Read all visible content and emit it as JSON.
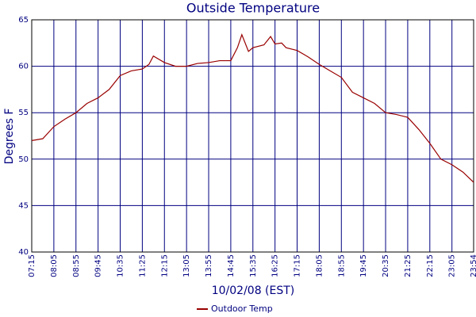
{
  "chart_data": {
    "type": "line",
    "title": "Outside Temperature",
    "y_label": "Degrees F",
    "x_label": "10/02/08 (EST)",
    "x": [
      435,
      460,
      485,
      510,
      535,
      560,
      585,
      610,
      635,
      660,
      685,
      700,
      710,
      735,
      760,
      785,
      810,
      835,
      860,
      885,
      900,
      910,
      925,
      935,
      960,
      975,
      985,
      1000,
      1010,
      1035,
      1060,
      1085,
      1110,
      1135,
      1160,
      1185,
      1210,
      1235,
      1260,
      1285,
      1310,
      1335,
      1360,
      1385,
      1410,
      1434
    ],
    "series": [
      {
        "name": "Outdoor Temp",
        "color": "#990000",
        "values": [
          52.0,
          52.2,
          53.5,
          54.3,
          55.0,
          56.0,
          56.6,
          57.5,
          59.0,
          59.5,
          59.7,
          60.2,
          61.1,
          60.4,
          60.0,
          60.0,
          60.3,
          60.4,
          60.6,
          60.6,
          62.0,
          63.4,
          61.6,
          62.0,
          62.3,
          63.2,
          62.4,
          62.5,
          62.0,
          61.7,
          61.0,
          60.2,
          59.5,
          58.8,
          57.2,
          56.6,
          56.0,
          55.0,
          54.8,
          54.5,
          53.2,
          51.7,
          50.0,
          49.4,
          48.6,
          47.5
        ]
      }
    ],
    "xlim": [
      435,
      1434
    ],
    "xticks": [
      {
        "value": 435,
        "label": "07:15"
      },
      {
        "value": 485,
        "label": "08:05"
      },
      {
        "value": 535,
        "label": "08:55"
      },
      {
        "value": 585,
        "label": "09:45"
      },
      {
        "value": 635,
        "label": "10:35"
      },
      {
        "value": 685,
        "label": "11:25"
      },
      {
        "value": 735,
        "label": "12:15"
      },
      {
        "value": 785,
        "label": "13:05"
      },
      {
        "value": 835,
        "label": "13:55"
      },
      {
        "value": 885,
        "label": "14:45"
      },
      {
        "value": 935,
        "label": "15:35"
      },
      {
        "value": 985,
        "label": "16:25"
      },
      {
        "value": 1035,
        "label": "17:15"
      },
      {
        "value": 1085,
        "label": "18:05"
      },
      {
        "value": 1135,
        "label": "18:55"
      },
      {
        "value": 1185,
        "label": "19:45"
      },
      {
        "value": 1235,
        "label": "20:35"
      },
      {
        "value": 1285,
        "label": "21:25"
      },
      {
        "value": 1335,
        "label": "22:15"
      },
      {
        "value": 1385,
        "label": "23:05"
      },
      {
        "value": 1434,
        "label": "23:54"
      }
    ],
    "ylim": [
      40,
      65
    ],
    "yticks": [
      40,
      45,
      50,
      55,
      60,
      65
    ],
    "grid": true,
    "grid_color": "#000080",
    "legend": "bottom"
  }
}
